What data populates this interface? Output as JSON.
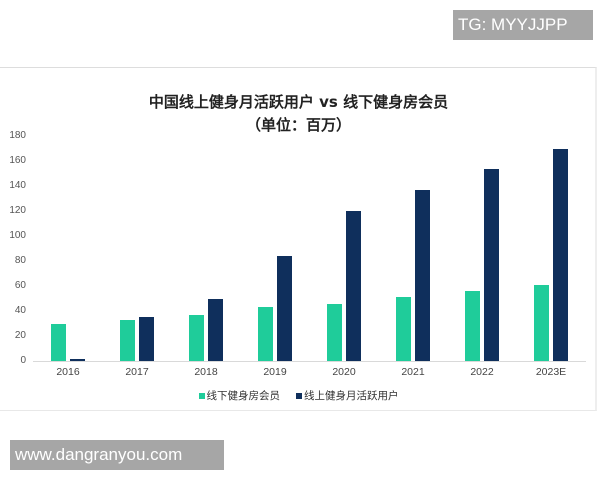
{
  "watermarks": {
    "top": "TG: MYYJJPP",
    "bottom": "www.dangranyou.com"
  },
  "colors": {
    "offline": "#1fcc9a",
    "online": "#0f2f5c"
  },
  "chart_data": {
    "type": "bar",
    "title": "中国线上健身月活跃用户 vs 线下健身房会员",
    "subtitle": "（单位：百万）",
    "xlabel": "",
    "ylabel": "",
    "ylim": [
      0,
      180
    ],
    "yticks": [
      0,
      20,
      40,
      60,
      80,
      100,
      120,
      140,
      160,
      180
    ],
    "grid": false,
    "legend_position": "bottom",
    "categories": [
      "2016",
      "2017",
      "2018",
      "2019",
      "2020",
      "2021",
      "2022",
      "2023E"
    ],
    "series": [
      {
        "name": "线下健身房会员",
        "color": "#1fcc9a",
        "values": [
          30,
          33,
          37,
          43,
          46,
          51,
          56,
          61
        ]
      },
      {
        "name": "线上健身月活跃用户",
        "color": "#0f2f5c",
        "values": [
          1,
          35,
          50,
          84,
          120,
          137,
          154,
          170
        ]
      }
    ]
  }
}
